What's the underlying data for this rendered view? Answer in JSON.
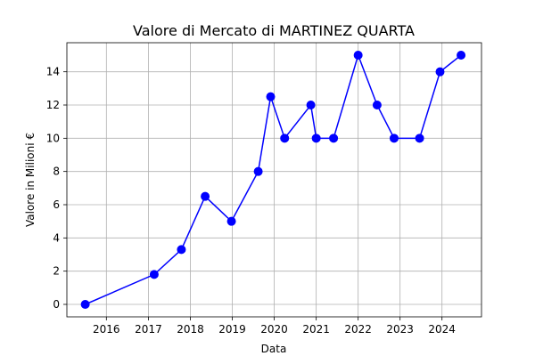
{
  "chart_data": {
    "type": "line",
    "title": "Valore di Mercato di MARTINEZ QUARTA",
    "xlabel": "Data",
    "ylabel": "Valore in Milioni €",
    "x_axis_type": "date",
    "xlim": [
      "2015-01-22",
      "2024-12-10"
    ],
    "ylim": [
      -0.75,
      15.75
    ],
    "x_ticks": [
      "2016",
      "2017",
      "2018",
      "2019",
      "2020",
      "2021",
      "2022",
      "2023",
      "2024"
    ],
    "y_ticks": [
      "0",
      "2",
      "4",
      "6",
      "8",
      "10",
      "12",
      "14"
    ],
    "grid": true,
    "legend": "none",
    "series_color": "#0000ff",
    "series": [
      {
        "x": [
          "2015-07-01",
          "2017-02-20",
          "2017-10-15",
          "2018-05-10",
          "2018-12-25",
          "2019-08-15",
          "2019-12-01",
          "2020-04-01",
          "2020-11-15",
          "2021-01-01",
          "2021-06-01",
          "2022-01-01",
          "2022-06-15",
          "2022-11-10",
          "2023-06-20",
          "2023-12-15",
          "2024-06-15"
        ],
        "y": [
          0,
          1.8,
          3.3,
          6.5,
          5.0,
          8.0,
          12.5,
          10.0,
          12.0,
          10.0,
          10.0,
          15.0,
          12.0,
          10.0,
          10.0,
          14.0,
          15.0
        ]
      }
    ]
  }
}
